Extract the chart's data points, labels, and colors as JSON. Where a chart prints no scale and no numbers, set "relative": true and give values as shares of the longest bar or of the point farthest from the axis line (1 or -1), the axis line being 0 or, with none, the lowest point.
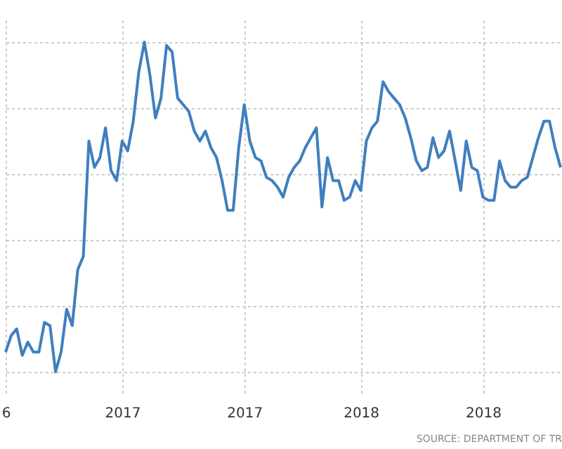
{
  "chart_data": {
    "type": "line",
    "relative": true,
    "grid": true,
    "color": "#3f7fbf",
    "categories": [
      "6",
      null,
      null,
      null,
      null,
      null,
      null,
      null,
      null,
      null,
      null,
      null,
      null,
      null,
      null,
      null,
      null,
      null,
      null,
      null,
      null,
      "2017",
      null,
      null,
      null,
      null,
      null,
      null,
      null,
      null,
      null,
      null,
      null,
      null,
      null,
      null,
      null,
      null,
      null,
      null,
      null,
      null,
      null,
      "2017",
      null,
      null,
      null,
      null,
      null,
      null,
      null,
      null,
      null,
      null,
      null,
      null,
      null,
      null,
      null,
      null,
      null,
      null,
      null,
      null,
      "2018",
      null,
      null,
      null,
      null,
      null,
      null,
      null,
      null,
      null,
      null,
      null,
      null,
      null,
      null,
      null,
      null,
      null,
      null,
      null,
      null,
      null,
      "2018",
      null,
      null,
      null,
      null,
      null,
      null,
      null,
      null,
      null,
      null,
      null,
      null,
      null,
      null
    ],
    "values": [
      0.06,
      0.11,
      0.13,
      0.05,
      0.09,
      0.06,
      0.06,
      0.15,
      0.14,
      0,
      0.06,
      0.19,
      0.14,
      0.31,
      0.35,
      0.7,
      0.62,
      0.65,
      0.74,
      0.61,
      0.58,
      0.7,
      0.67,
      0.76,
      0.91,
      1.0,
      0.9,
      0.77,
      0.83,
      0.99,
      0.97,
      0.83,
      0.81,
      0.79,
      0.73,
      0.7,
      0.73,
      0.68,
      0.65,
      0.58,
      0.49,
      0.49,
      0.68,
      0.81,
      0.7,
      0.65,
      0.64,
      0.59,
      0.58,
      0.56,
      0.53,
      0.59,
      0.62,
      0.64,
      0.68,
      0.71,
      0.74,
      0.5,
      0.65,
      0.58,
      0.58,
      0.52,
      0.53,
      0.58,
      0.55,
      0.7,
      0.74,
      0.76,
      0.88,
      0.85,
      0.83,
      0.81,
      0.77,
      0.71,
      0.64,
      0.61,
      0.62,
      0.71,
      0.65,
      0.67,
      0.73,
      0.64,
      0.55,
      0.7,
      0.62,
      0.61,
      0.53,
      0.52,
      0.52,
      0.64,
      0.58,
      0.56,
      0.56,
      0.58,
      0.59,
      0.65,
      0.71,
      0.76,
      0.76,
      0.68,
      0.62
    ],
    "annotations": [
      "SOURCE: DEPARTMENT OF TR"
    ]
  }
}
